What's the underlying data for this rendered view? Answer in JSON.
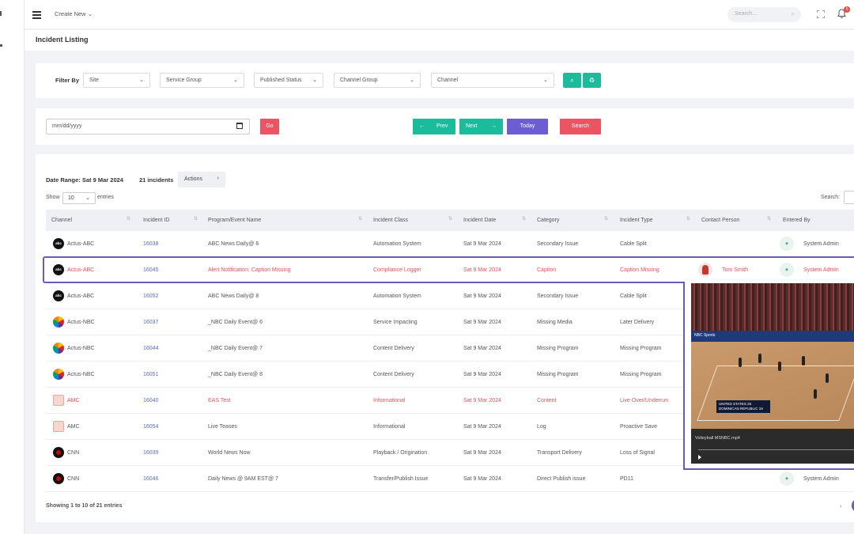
{
  "topbar": {
    "create_new": "Create New",
    "search_placeholder": "Search...",
    "notifications": "5"
  },
  "page": {
    "title": "Incident Listing"
  },
  "filters": {
    "label": "Filter By",
    "site": "Site",
    "service_group": "Service Group",
    "published_status": "Published Status",
    "channel_group": "Channel Group",
    "channel": "Channel"
  },
  "date_controls": {
    "placeholder": "mm/dd/yyyy",
    "go": "Go",
    "prev": "Prev",
    "next": "Next",
    "today": "Today",
    "search": "Search",
    "colors": {
      "teal": "#1abc9c",
      "purple": "#6c5dd3",
      "red": "#ec5463"
    }
  },
  "listing": {
    "date_range": "Date Range: Sat 9 Mar 2024",
    "count": "21 incidents",
    "actions": "Actions",
    "show": "Show",
    "page_length": "10",
    "entries": "entries",
    "search_label": "Search:",
    "showing": "Showing 1 to 10 of 21 entries",
    "columns": [
      "Channel",
      "Incident ID",
      "Program/Event Name",
      "Incident Class",
      "Incident Date",
      "Category",
      "Incident Type",
      "Contact Person",
      "Entered By"
    ],
    "rows": [
      {
        "logo": "abc",
        "channel": "Actus-ABC",
        "id": "16038",
        "program": "ABC News Daily@ 6",
        "class": "Automation System",
        "date": "Sat 9 Mar 2024",
        "category": "Secondary Issue",
        "type": "Cable Split",
        "contact": "",
        "entered": "System Admin"
      },
      {
        "logo": "abc",
        "channel": "Actus-ABC",
        "id": "16045",
        "program": "Alert Notification: Caption Missing",
        "class": "Compliance Logger",
        "date": "Sat 9 Mar 2024",
        "category": "Caption",
        "type": "Caption Missing",
        "contact": "Tom Smith",
        "entered": "System Admin"
      },
      {
        "logo": "abc",
        "channel": "Actus-ABC",
        "id": "16052",
        "program": "ABC News Daily@ 8",
        "class": "Automation System",
        "date": "Sat 9 Mar 2024",
        "category": "Secondary Issue",
        "type": "Cable Split",
        "contact": "",
        "entered": ""
      },
      {
        "logo": "nbc",
        "channel": "Actus-NBC",
        "id": "16037",
        "program": "_NBC Daily Event@ 6",
        "class": "Service Impacting",
        "date": "Sat 9 Mar 2024",
        "category": "Missing Media",
        "type": "Later Delivery",
        "contact": "",
        "entered": ""
      },
      {
        "logo": "nbc",
        "channel": "Actus-NBC",
        "id": "16044",
        "program": "_NBC Daily Event@ 7",
        "class": "Content Delivery",
        "date": "Sat 9 Mar 2024",
        "category": "Missing Program",
        "type": "Missing Program",
        "contact": "",
        "entered": ""
      },
      {
        "logo": "nbc",
        "channel": "Actus-NBC",
        "id": "16051",
        "program": "_NBC Daily Event@ 8",
        "class": "Content Delivery",
        "date": "Sat 9 Mar 2024",
        "category": "Missing Program",
        "type": "Missing Program",
        "contact": "",
        "entered": ""
      },
      {
        "logo": "amc",
        "channel": "AMC",
        "id": "16040",
        "program": "EAS Test",
        "class": "Informational",
        "date": "Sat 9 Mar 2024",
        "category": "Content",
        "type": "Live Over/Underrun",
        "contact": "",
        "entered": ""
      },
      {
        "logo": "amc",
        "channel": "AMC",
        "id": "16054",
        "program": "Live Teases",
        "class": "Informational",
        "date": "Sat 9 Mar 2024",
        "category": "Log",
        "type": "Proactive Save",
        "contact": "",
        "entered": ""
      },
      {
        "logo": "cnn",
        "channel": "CNN",
        "id": "16039",
        "program": "World News Now",
        "class": "Playback / Origination",
        "date": "Sat 9 Mar 2024",
        "category": "Transport Delivery",
        "type": "Loss of Signal",
        "contact": "",
        "entered": ""
      },
      {
        "logo": "cnn",
        "channel": "CNN",
        "id": "16046",
        "program": "Daily News @ 9AM EST@ 7",
        "class": "Transfer/Publish Issue",
        "date": "Sat 9 Mar 2024",
        "category": "Direct Publish issue",
        "type": "PD11",
        "contact": "",
        "entered": "System Admin"
      }
    ]
  },
  "video_popup": {
    "filename": "Volleyball MSNBC.mp4",
    "banner": "NBC Sports",
    "score_line_1": "UNITED STATES 25",
    "score_line_2": "DOMINICAN REPUBLIC 19"
  }
}
